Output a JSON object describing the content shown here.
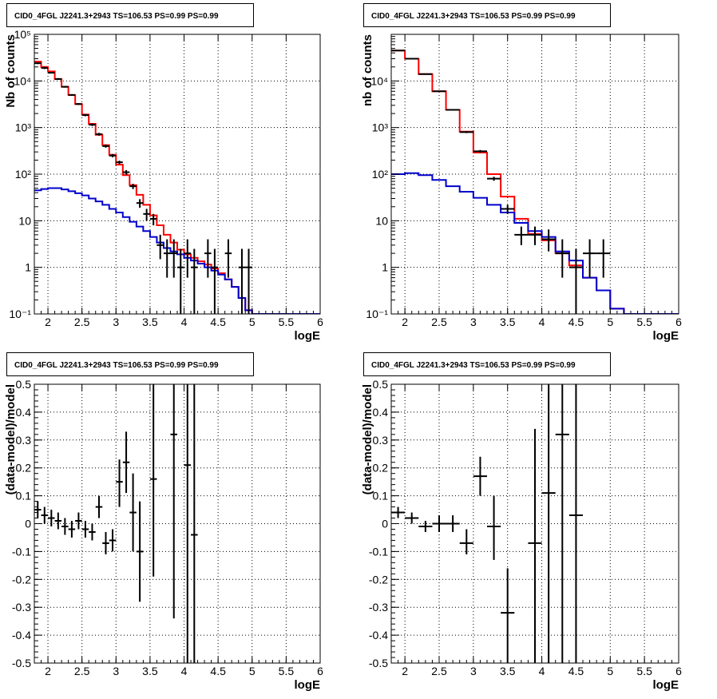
{
  "colors": {
    "data": "#000000",
    "total_model": "#ff0000",
    "bkg_model": "#0000cc",
    "grid": "#000000",
    "frame": "#000000"
  },
  "chart_data": [
    {
      "type": "line",
      "title": "CID0_4FGL J2241.3+2943 TS=106.53 PS=0.99 PS=0.99",
      "xlabel": "logE",
      "ylabel": "Nb of counts",
      "log_y": true,
      "xlim": [
        1.8,
        6.0
      ],
      "ylim": [
        0.1,
        100000
      ],
      "x_ticks": [
        "2",
        "2.5",
        "3",
        "3.5",
        "4",
        "4.5",
        "5",
        "5.5",
        "6"
      ],
      "y_ticks": [
        "10⁻¹",
        "1",
        "10",
        "10²",
        "10³",
        "10⁴",
        "10⁵"
      ],
      "grid": true,
      "series": [
        {
          "role": "total-model",
          "color": "#ff0000",
          "step": true,
          "x": [
            1.8,
            1.9,
            2.0,
            2.1,
            2.2,
            2.3,
            2.4,
            2.5,
            2.6,
            2.7,
            2.8,
            2.9,
            3.0,
            3.1,
            3.2,
            3.3,
            3.4,
            3.5,
            3.6,
            3.7,
            3.8,
            3.9,
            4.0,
            4.1,
            4.2,
            4.3,
            4.4,
            4.5,
            4.6,
            4.7,
            4.8,
            4.9,
            5.0,
            5.1,
            5.2,
            5.3,
            5.4,
            5.5,
            5.6,
            5.7,
            5.8,
            5.9,
            6.0
          ],
          "y": [
            26000,
            20000,
            16000,
            11000,
            7500,
            5000,
            3200,
            1900,
            1200,
            700,
            420,
            260,
            160,
            95,
            58,
            36,
            22,
            13,
            8,
            5,
            3.4,
            2.4,
            1.9,
            1.6,
            1.35,
            1.15,
            0.95,
            0.75,
            0.55,
            0.38,
            0.22,
            0.12,
            0.1,
            0.1,
            0.1,
            0.1,
            0.1,
            0.1,
            0.1,
            0.1,
            0.1,
            0.1,
            0.1
          ]
        },
        {
          "role": "background-model",
          "color": "#0000cc",
          "step": true,
          "x": [
            1.8,
            1.9,
            2.0,
            2.1,
            2.2,
            2.3,
            2.4,
            2.5,
            2.6,
            2.7,
            2.8,
            2.9,
            3.0,
            3.1,
            3.2,
            3.3,
            3.4,
            3.5,
            3.6,
            3.7,
            3.8,
            3.9,
            4.0,
            4.1,
            4.2,
            4.3,
            4.4,
            4.5,
            4.6,
            4.7,
            4.8,
            4.9,
            5.0,
            5.1,
            5.2,
            5.3,
            5.4,
            5.5,
            5.6,
            5.7,
            5.8,
            5.9,
            6.0
          ],
          "y": [
            45,
            48,
            50,
            50,
            47,
            43,
            39,
            35,
            30,
            26,
            22,
            18,
            15,
            12,
            9.5,
            7.5,
            6,
            4.5,
            3.4,
            2.6,
            2.2,
            1.9,
            1.6,
            1.4,
            1.2,
            1.0,
            0.85,
            0.7,
            0.55,
            0.38,
            0.22,
            0.12,
            0.1,
            0.1,
            0.1,
            0.1,
            0.1,
            0.1,
            0.1,
            0.1,
            0.1,
            0.1,
            0.1
          ]
        }
      ],
      "points": [
        {
          "x": 1.85,
          "xerr": 0.05,
          "y": 24000,
          "lo": 23000,
          "hi": 25000
        },
        {
          "x": 1.95,
          "xerr": 0.05,
          "y": 19000,
          "lo": 18000,
          "hi": 20000
        },
        {
          "x": 2.05,
          "xerr": 0.05,
          "y": 15000,
          "lo": 14500,
          "hi": 15500
        },
        {
          "x": 2.15,
          "xerr": 0.05,
          "y": 11000,
          "lo": 10500,
          "hi": 11500
        },
        {
          "x": 2.25,
          "xerr": 0.05,
          "y": 7500,
          "lo": 7200,
          "hi": 7800
        },
        {
          "x": 2.35,
          "xerr": 0.05,
          "y": 5000,
          "lo": 4800,
          "hi": 5200
        },
        {
          "x": 2.45,
          "xerr": 0.05,
          "y": 3200,
          "lo": 3050,
          "hi": 3350
        },
        {
          "x": 2.55,
          "xerr": 0.05,
          "y": 1850,
          "lo": 1750,
          "hi": 1950
        },
        {
          "x": 2.65,
          "xerr": 0.05,
          "y": 1150,
          "lo": 1080,
          "hi": 1220
        },
        {
          "x": 2.75,
          "xerr": 0.05,
          "y": 720,
          "lo": 670,
          "hi": 770
        },
        {
          "x": 2.85,
          "xerr": 0.05,
          "y": 400,
          "lo": 370,
          "hi": 430
        },
        {
          "x": 2.95,
          "xerr": 0.05,
          "y": 250,
          "lo": 230,
          "hi": 270
        },
        {
          "x": 3.05,
          "xerr": 0.05,
          "y": 180,
          "lo": 165,
          "hi": 195
        },
        {
          "x": 3.15,
          "xerr": 0.05,
          "y": 110,
          "lo": 98,
          "hi": 122
        },
        {
          "x": 3.25,
          "xerr": 0.05,
          "y": 55,
          "lo": 48,
          "hi": 62
        },
        {
          "x": 3.35,
          "xerr": 0.05,
          "y": 24,
          "lo": 19,
          "hi": 29
        },
        {
          "x": 3.45,
          "xerr": 0.05,
          "y": 14,
          "lo": 10,
          "hi": 18
        },
        {
          "x": 3.55,
          "xerr": 0.05,
          "y": 11,
          "lo": 8,
          "hi": 14
        },
        {
          "x": 3.65,
          "xerr": 0.05,
          "y": 3,
          "lo": 1.5,
          "hi": 5
        },
        {
          "x": 3.75,
          "xerr": 0.05,
          "y": 2,
          "lo": 0.6,
          "hi": 4
        },
        {
          "x": 3.85,
          "xerr": 0.05,
          "y": 2,
          "lo": 0.6,
          "hi": 4
        },
        {
          "x": 3.95,
          "xerr": 0.05,
          "y": 1,
          "lo": 0.1,
          "hi": 2.5
        },
        {
          "x": 4.05,
          "xerr": 0.05,
          "y": 2,
          "lo": 0.6,
          "hi": 4
        },
        {
          "x": 4.15,
          "xerr": 0.05,
          "y": 1,
          "lo": 0.1,
          "hi": 2.5
        },
        {
          "x": 4.35,
          "xerr": 0.05,
          "y": 2,
          "lo": 0.6,
          "hi": 4
        },
        {
          "x": 4.45,
          "xerr": 0.05,
          "y": 1,
          "lo": 0.1,
          "hi": 2.5
        },
        {
          "x": 4.65,
          "xerr": 0.05,
          "y": 2,
          "lo": 0.6,
          "hi": 4
        },
        {
          "x": 4.85,
          "xerr": 0.05,
          "y": 1,
          "lo": 0.1,
          "hi": 2.5
        },
        {
          "x": 4.95,
          "xerr": 0.05,
          "y": 1,
          "lo": 0.1,
          "hi": 2.5
        }
      ]
    },
    {
      "type": "line",
      "title": "CID0_4FGL J2241.3+2943 TS=106.53 PS=0.99 PS=0.99",
      "xlabel": "logE",
      "ylabel": "nb of counts",
      "log_y": true,
      "xlim": [
        1.8,
        6.0
      ],
      "ylim": [
        0.1,
        100000
      ],
      "x_ticks": [
        "2",
        "2.5",
        "3",
        "3.5",
        "4",
        "4.5",
        "5",
        "5.5",
        "6"
      ],
      "y_ticks": [
        "10⁻¹",
        "1",
        "10",
        "10²",
        "10³",
        "10⁴"
      ],
      "grid": true,
      "series": [
        {
          "role": "total-model",
          "color": "#ff0000",
          "step": true,
          "x": [
            1.8,
            2.0,
            2.2,
            2.4,
            2.6,
            2.8,
            3.0,
            3.2,
            3.4,
            3.6,
            3.8,
            4.0,
            4.2,
            4.4,
            4.6,
            4.8,
            5.0,
            5.2,
            5.4,
            5.6,
            5.8,
            6.0
          ],
          "y": [
            45000,
            30000,
            14000,
            6000,
            2400,
            820,
            290,
            100,
            33,
            11,
            5.2,
            3.8,
            2.0,
            1.1,
            0.6,
            0.32,
            0.13,
            0.1,
            0.1,
            0.1,
            0.1,
            0.1
          ]
        },
        {
          "role": "background-model",
          "color": "#0000cc",
          "step": true,
          "x": [
            1.8,
            2.0,
            2.2,
            2.4,
            2.6,
            2.8,
            3.0,
            3.2,
            3.4,
            3.6,
            3.8,
            4.0,
            4.2,
            4.4,
            4.6,
            4.8,
            5.0,
            5.2,
            5.4,
            5.6,
            5.8,
            6.0
          ],
          "y": [
            100,
            105,
            95,
            75,
            55,
            42,
            31,
            22,
            15,
            9,
            6,
            4.5,
            2.2,
            1.4,
            0.6,
            0.32,
            0.13,
            0.1,
            0.1,
            0.1,
            0.1,
            0.1
          ]
        }
      ],
      "points": [
        {
          "x": 1.9,
          "xerr": 0.1,
          "y": 45000,
          "lo": 44000,
          "hi": 46000
        },
        {
          "x": 2.1,
          "xerr": 0.1,
          "y": 30000,
          "lo": 29500,
          "hi": 30500
        },
        {
          "x": 2.3,
          "xerr": 0.1,
          "y": 14000,
          "lo": 13700,
          "hi": 14300
        },
        {
          "x": 2.5,
          "xerr": 0.1,
          "y": 6000,
          "lo": 5850,
          "hi": 6150
        },
        {
          "x": 2.7,
          "xerr": 0.1,
          "y": 2400,
          "lo": 2310,
          "hi": 2490
        },
        {
          "x": 2.9,
          "xerr": 0.1,
          "y": 800,
          "lo": 760,
          "hi": 840
        },
        {
          "x": 3.1,
          "xerr": 0.1,
          "y": 310,
          "lo": 290,
          "hi": 330
        },
        {
          "x": 3.3,
          "xerr": 0.1,
          "y": 80,
          "lo": 72,
          "hi": 88
        },
        {
          "x": 3.5,
          "xerr": 0.1,
          "y": 18,
          "lo": 14,
          "hi": 22
        },
        {
          "x": 3.7,
          "xerr": 0.1,
          "y": 5,
          "lo": 3,
          "hi": 7.5
        },
        {
          "x": 3.9,
          "xerr": 0.1,
          "y": 5,
          "lo": 3,
          "hi": 7.5
        },
        {
          "x": 4.1,
          "xerr": 0.1,
          "y": 4,
          "lo": 2.2,
          "hi": 6.5
        },
        {
          "x": 4.3,
          "xerr": 0.1,
          "y": 2,
          "lo": 0.6,
          "hi": 4
        },
        {
          "x": 4.5,
          "xerr": 0.1,
          "y": 1,
          "lo": 0.1,
          "hi": 2.5
        },
        {
          "x": 4.7,
          "xerr": 0.1,
          "y": 2,
          "lo": 0.6,
          "hi": 4
        },
        {
          "x": 4.9,
          "xerr": 0.1,
          "y": 2,
          "lo": 0.6,
          "hi": 4
        }
      ]
    },
    {
      "type": "scatter",
      "title": "CID0_4FGL J2241.3+2943 TS=106.53 PS=0.99 PS=0.99",
      "xlabel": "logE",
      "ylabel": "(data-model)/model",
      "log_y": false,
      "xlim": [
        1.8,
        6.0
      ],
      "ylim": [
        -0.5,
        0.5
      ],
      "x_ticks": [
        "2",
        "2.5",
        "3",
        "3.5",
        "4",
        "4.5",
        "5",
        "5.5",
        "6"
      ],
      "y_ticks": [
        "-0.5",
        "-0.4",
        "-0.3",
        "-0.2",
        "-0.1",
        "0",
        "0.1",
        "0.2",
        "0.3",
        "0.4",
        "0.5"
      ],
      "grid": true,
      "series": [],
      "points": [
        {
          "x": 1.85,
          "xerr": 0.05,
          "y": 0.05,
          "lo": 0.02,
          "hi": 0.08
        },
        {
          "x": 1.95,
          "xerr": 0.05,
          "y": 0.03,
          "lo": 0.0,
          "hi": 0.06
        },
        {
          "x": 2.05,
          "xerr": 0.05,
          "y": 0.02,
          "lo": -0.01,
          "hi": 0.05
        },
        {
          "x": 2.15,
          "xerr": 0.05,
          "y": 0.01,
          "lo": -0.02,
          "hi": 0.04
        },
        {
          "x": 2.25,
          "xerr": 0.05,
          "y": -0.01,
          "lo": -0.04,
          "hi": 0.02
        },
        {
          "x": 2.35,
          "xerr": 0.05,
          "y": -0.02,
          "lo": -0.05,
          "hi": 0.01
        },
        {
          "x": 2.45,
          "xerr": 0.05,
          "y": 0.01,
          "lo": -0.02,
          "hi": 0.04
        },
        {
          "x": 2.55,
          "xerr": 0.05,
          "y": -0.02,
          "lo": -0.05,
          "hi": 0.01
        },
        {
          "x": 2.65,
          "xerr": 0.05,
          "y": -0.03,
          "lo": -0.06,
          "hi": 0.0
        },
        {
          "x": 2.75,
          "xerr": 0.05,
          "y": 0.06,
          "lo": 0.02,
          "hi": 0.1
        },
        {
          "x": 2.85,
          "xerr": 0.05,
          "y": -0.07,
          "lo": -0.11,
          "hi": -0.03
        },
        {
          "x": 2.95,
          "xerr": 0.05,
          "y": -0.06,
          "lo": -0.1,
          "hi": -0.02
        },
        {
          "x": 3.05,
          "xerr": 0.05,
          "y": 0.15,
          "lo": 0.06,
          "hi": 0.23
        },
        {
          "x": 3.15,
          "xerr": 0.05,
          "y": 0.22,
          "lo": 0.11,
          "hi": 0.33
        },
        {
          "x": 3.25,
          "xerr": 0.05,
          "y": 0.04,
          "lo": -0.1,
          "hi": 0.18
        },
        {
          "x": 3.35,
          "xerr": 0.05,
          "y": -0.1,
          "lo": -0.28,
          "hi": 0.08
        },
        {
          "x": 3.55,
          "xerr": 0.05,
          "y": 0.16,
          "lo": -0.19,
          "hi": 0.51
        },
        {
          "x": 3.85,
          "xerr": 0.05,
          "y": 0.32,
          "lo": -0.34,
          "hi": 0.51
        },
        {
          "x": 4.05,
          "xerr": 0.05,
          "y": 0.21,
          "lo": -0.51,
          "hi": 0.51
        },
        {
          "x": 4.15,
          "xerr": 0.05,
          "y": -0.04,
          "lo": -0.51,
          "hi": 0.51
        }
      ]
    },
    {
      "type": "scatter",
      "title": "CID0_4FGL J2241.3+2943 TS=106.53 PS=0.99 PS=0.99",
      "xlabel": "logE",
      "ylabel": "(data-model)/model",
      "log_y": false,
      "xlim": [
        1.8,
        6.0
      ],
      "ylim": [
        -0.5,
        0.5
      ],
      "x_ticks": [
        "2",
        "2.5",
        "3",
        "3.5",
        "4",
        "4.5",
        "5",
        "5.5",
        "6"
      ],
      "y_ticks": [
        "-0.5",
        "-0.4",
        "-0.3",
        "-0.2",
        "-0.1",
        "0",
        "0.1",
        "0.2",
        "0.3",
        "0.4",
        "0.5"
      ],
      "grid": true,
      "series": [],
      "points": [
        {
          "x": 1.9,
          "xerr": 0.1,
          "y": 0.04,
          "lo": 0.02,
          "hi": 0.06
        },
        {
          "x": 2.1,
          "xerr": 0.1,
          "y": 0.02,
          "lo": 0.0,
          "hi": 0.04
        },
        {
          "x": 2.3,
          "xerr": 0.1,
          "y": -0.01,
          "lo": -0.03,
          "hi": 0.01
        },
        {
          "x": 2.5,
          "xerr": 0.1,
          "y": 0.0,
          "lo": -0.03,
          "hi": 0.03
        },
        {
          "x": 2.7,
          "xerr": 0.1,
          "y": 0.0,
          "lo": -0.03,
          "hi": 0.03
        },
        {
          "x": 2.9,
          "xerr": 0.1,
          "y": -0.07,
          "lo": -0.11,
          "hi": -0.02
        },
        {
          "x": 3.1,
          "xerr": 0.1,
          "y": 0.17,
          "lo": 0.1,
          "hi": 0.24
        },
        {
          "x": 3.3,
          "xerr": 0.1,
          "y": -0.01,
          "lo": -0.13,
          "hi": 0.1
        },
        {
          "x": 3.5,
          "xerr": 0.1,
          "y": -0.32,
          "lo": -0.51,
          "hi": -0.16
        },
        {
          "x": 3.9,
          "xerr": 0.1,
          "y": -0.07,
          "lo": -0.51,
          "hi": 0.34
        },
        {
          "x": 4.1,
          "xerr": 0.1,
          "y": 0.11,
          "lo": -0.51,
          "hi": 0.51
        },
        {
          "x": 4.3,
          "xerr": 0.1,
          "y": 0.32,
          "lo": -0.51,
          "hi": 0.51
        },
        {
          "x": 4.5,
          "xerr": 0.1,
          "y": 0.03,
          "lo": -0.51,
          "hi": 0.51
        }
      ]
    }
  ]
}
